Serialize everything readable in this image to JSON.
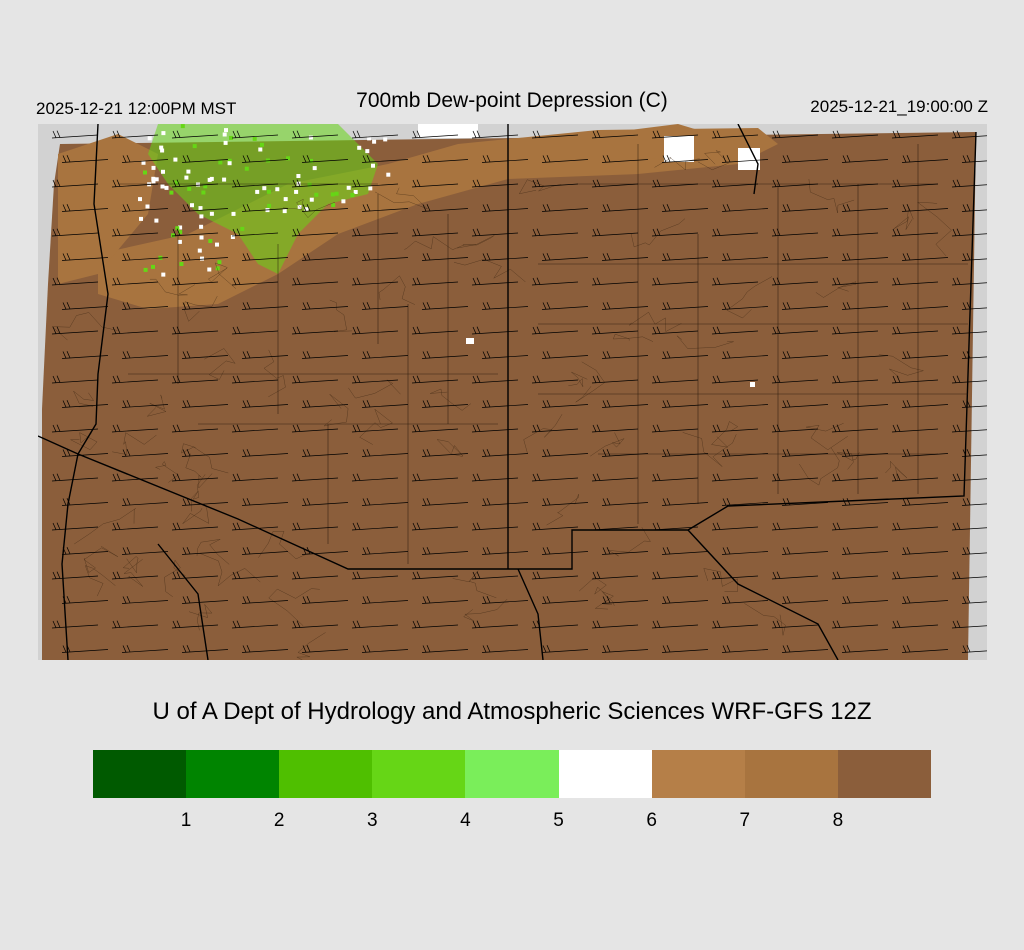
{
  "header": {
    "valid_local": "2025-12-21 12:00PM MST",
    "title": "700mb Dew-point Depression (C)",
    "valid_utc": "2025-12-21_19:00:00 Z"
  },
  "credit": "U of A Dept of Hydrology and Atmospheric Sciences WRF-GFS 12Z",
  "colors": {
    "background": "#e5e5e5",
    "map_outside": "#d2d2d2",
    "primary_fill": "#8b5e3b",
    "mid_fill": "#a8743f",
    "moist_white": "#ffffff",
    "moist_green": "#66d616"
  },
  "legend": {
    "colors": [
      "#005a00",
      "#008400",
      "#4fbf00",
      "#66d616",
      "#7aee5a",
      "#ffffff",
      "#b57f48",
      "#a8743f",
      "#8b5e3b"
    ],
    "tick_labels": [
      "1",
      "2",
      "3",
      "4",
      "5",
      "6",
      "7",
      "8"
    ]
  }
}
